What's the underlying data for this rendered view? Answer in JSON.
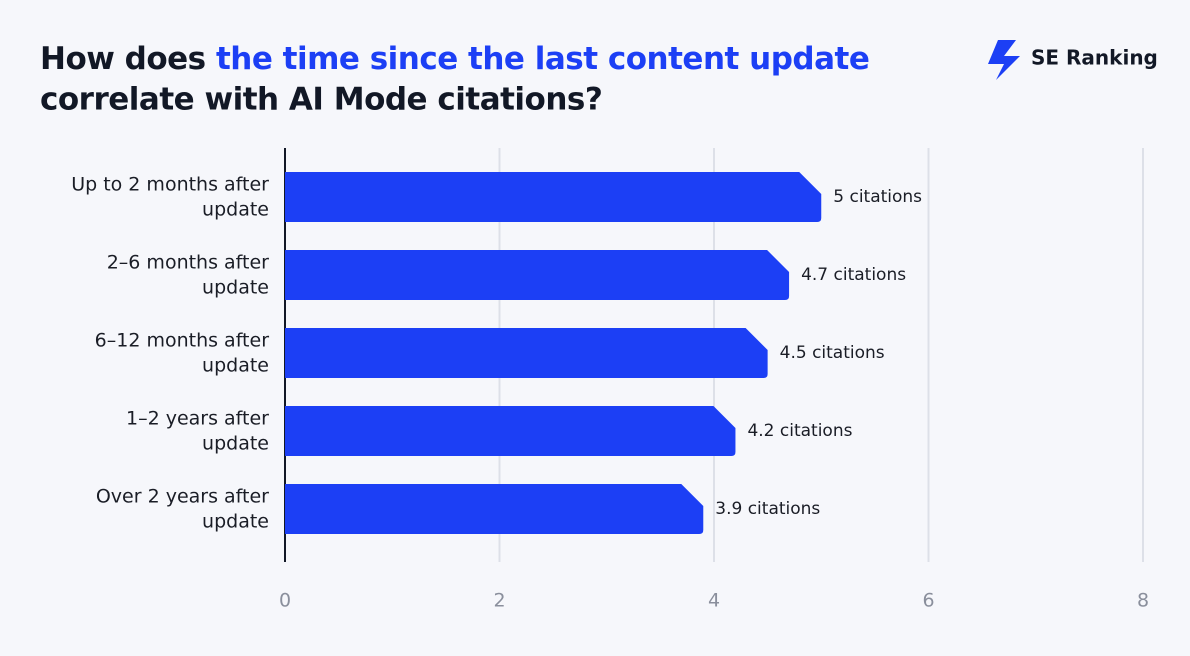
{
  "chart_data": {
    "type": "bar",
    "orientation": "horizontal",
    "title": {
      "lead": "How does",
      "highlight": "the time since the last content update",
      "rest": "correlate with AI Mode citations?"
    },
    "brand": "SE Ranking",
    "categories": [
      "Up to 2 months after update",
      "2–6 months after update",
      "6–12 months after update",
      "1–2 years after update",
      "Over 2 years after update"
    ],
    "values": [
      5,
      4.7,
      4.5,
      4.2,
      3.9
    ],
    "value_labels": [
      "5 citations",
      "4.7 citations",
      "4.5 citations",
      "4.2 citations",
      "3.9 citations"
    ],
    "color": "#1c3ff5",
    "title_highlight_color": "#1c3ff5",
    "xlim": [
      0,
      8
    ],
    "xticks": [
      0,
      2,
      4,
      6,
      8
    ],
    "grid": true
  }
}
